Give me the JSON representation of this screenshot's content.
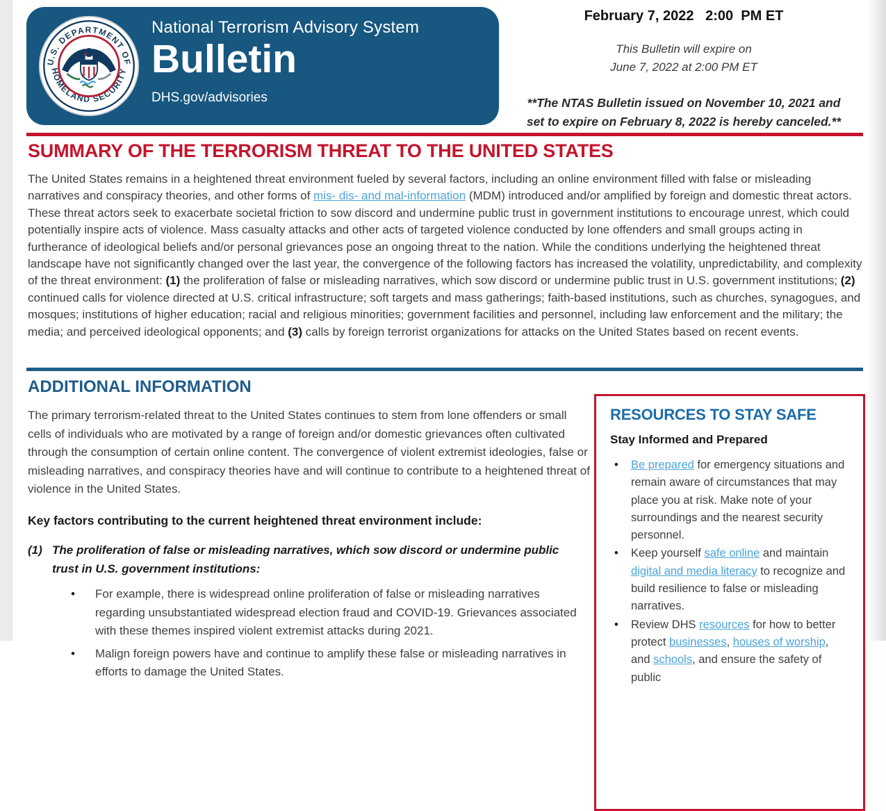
{
  "colors": {
    "header_blue": "#175780",
    "summary_red": "#c3152d",
    "rule_red": "#c3152d",
    "rule_blue": "#1f5c8a",
    "additional_blue": "#1f5c8a",
    "resources_blue": "#1b6ca8",
    "link_blue": "#4ba3da",
    "body_text": "#3f3f3f"
  },
  "header": {
    "seal": {
      "ring_top": "U.S. DEPARTMENT OF",
      "ring_bottom": "HOMELAND SECURITY"
    },
    "system_name": "National Terrorism Advisory System",
    "doc_type": "Bulletin",
    "url": "DHS.gov/advisories",
    "issued_datetime": "February 7, 2022   2:00  PM ET",
    "expire_line1": "This Bulletin will expire on",
    "expire_line2": "June 7, 2022 at 2:00 PM ET",
    "cancel_line1": "**The NTAS Bulletin issued on November 10, 2021 and",
    "cancel_line2": "set to expire on February 8, 2022 is hereby canceled.**"
  },
  "summary": {
    "title": "SUMMARY OF THE TERRORISM THREAT TO THE UNITED STATES",
    "paragraph": [
      {
        "t": "The United States remains in a heightened threat environment fueled by several factors, including an online environment filled with false or misleading narratives and conspiracy theories, and other forms of "
      },
      {
        "t": "mis- dis- and mal-information",
        "link": true
      },
      {
        "t": " (MDM) introduced and/or amplified by foreign and domestic threat actors. These threat actors seek to exacerbate societal friction to sow discord and undermine public trust in government institutions to encourage unrest, which could potentially inspire acts of violence. Mass casualty attacks and other acts of targeted violence conducted by lone offenders and small groups acting in furtherance of ideological beliefs and/or personal grievances pose an ongoing threat to the nation. While the conditions underlying the heightened threat landscape have not significantly changed over the last year, the convergence of the following factors has increased the volatility, unpredictability, and complexity of the threat environment: "
      },
      {
        "t": "(1)",
        "b": true
      },
      {
        "t": " the proliferation of false or misleading narratives, which sow discord or undermine public trust in U.S. government institutions; "
      },
      {
        "t": "(2)",
        "b": true
      },
      {
        "t": " continued calls for violence directed at U.S. critical infrastructure; soft targets and mass gatherings; faith-based institutions, such as churches, synagogues, and mosques; institutions of higher education; racial and religious minorities; government facilities and personnel, including law enforcement and the military; the media; and perceived ideological opponents; and "
      },
      {
        "t": "(3)",
        "b": true
      },
      {
        "t": " calls by foreign terrorist organizations for attacks on the United States based on recent events."
      }
    ]
  },
  "additional": {
    "title": "ADDITIONAL INFORMATION",
    "intro": "The primary terrorism-related threat to the United States continues to stem from lone offenders or small cells of individuals who are motivated by a range of foreign and/or domestic grievances often cultivated through the consumption of certain online content. The convergence of violent extremist ideologies, false or misleading narratives, and conspiracy theories have and will continue to contribute to a heightened threat of violence in the United States.",
    "key_factors_heading": "Key factors contributing to the current heightened threat environment include:",
    "factor1_number": "(1)",
    "factor1_text": "The proliferation of false or misleading narratives, which sow discord or undermine public trust in U.S. government institutions:",
    "bullets": [
      "For example, there is widespread online proliferation of false or misleading narratives regarding unsubstantiated widespread election fraud and COVID-19. Grievances associated with these themes inspired violent extremist attacks during 2021.",
      "Malign foreign powers have and continue to amplify these false or misleading narratives in efforts to damage the United States."
    ]
  },
  "resources": {
    "title": "RESOURCES TO STAY SAFE",
    "subtitle": "Stay Informed and Prepared",
    "bullets": [
      [
        {
          "t": "Be prepared",
          "link": true
        },
        {
          "t": " for emergency situations and remain aware of circumstances that may place you at risk. Make note of your surroundings and the nearest security personnel."
        }
      ],
      [
        {
          "t": "Keep yourself "
        },
        {
          "t": "safe online",
          "link": true
        },
        {
          "t": " and maintain "
        },
        {
          "t": "digital and media literacy",
          "link": true
        },
        {
          "t": " to recognize and build resilience to false or misleading narratives."
        }
      ],
      [
        {
          "t": "Review DHS "
        },
        {
          "t": "resources",
          "link": true
        },
        {
          "t": " for how to better protect "
        },
        {
          "t": "businesses",
          "link": true
        },
        {
          "t": ", "
        },
        {
          "t": "houses of worship",
          "link": true
        },
        {
          "t": ", and "
        },
        {
          "t": "schools",
          "link": true
        },
        {
          "t": ", and ensure the safety of public"
        }
      ]
    ]
  }
}
